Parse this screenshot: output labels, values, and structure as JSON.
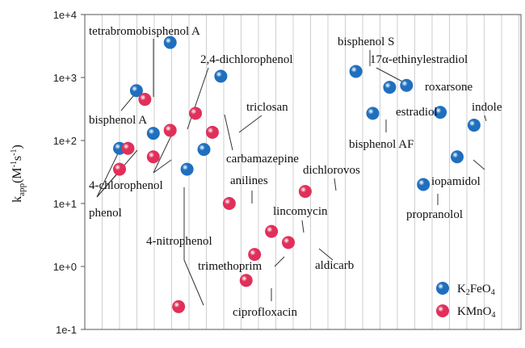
{
  "chart_data": {
    "type": "scatter",
    "y_scale": "log",
    "ylim": [
      0.1,
      10000
    ],
    "yticks": [
      0.1,
      1,
      10,
      100,
      1000,
      10000
    ],
    "ytick_labels": [
      "1e-1",
      "1e+0",
      "1e+1",
      "1e+2",
      "1e+3",
      "1e+4"
    ],
    "ylabel_main": "k",
    "ylabel_sub": "app",
    "ylabel_units": "(M",
    "ylabel_exp1": "-1",
    "ylabel_mid": "s",
    "ylabel_exp2": "-1",
    "ylabel_close": ")",
    "grid": "vertical",
    "legend_position": "bottom-right",
    "series": [
      {
        "name": "K₂FeO₄",
        "legend_main": "K",
        "legend_sub1": "2",
        "legend_mid": "FeO",
        "legend_sub2": "4",
        "color": "#1f6fbf",
        "points": [
          {
            "x": 1,
            "y": 75
          },
          {
            "x": 2,
            "y": 620
          },
          {
            "x": 3,
            "y": 130
          },
          {
            "x": 4,
            "y": 3600
          },
          {
            "x": 5,
            "y": 35
          },
          {
            "x": 6,
            "y": 72
          },
          {
            "x": 7,
            "y": 1050
          },
          {
            "x": 15,
            "y": 1250
          },
          {
            "x": 16,
            "y": 270
          },
          {
            "x": 17,
            "y": 700
          },
          {
            "x": 18,
            "y": 750
          },
          {
            "x": 19,
            "y": 20
          },
          {
            "x": 20,
            "y": 280
          },
          {
            "x": 21,
            "y": 55
          },
          {
            "x": 22,
            "y": 175
          }
        ]
      },
      {
        "name": "KMnO₄",
        "legend_main": "KMnO",
        "legend_sub1": "",
        "legend_mid": "",
        "legend_sub2": "4",
        "color": "#e0305a",
        "points": [
          {
            "x": 1,
            "y": 35
          },
          {
            "x": 1.5,
            "y": 75
          },
          {
            "x": 2.5,
            "y": 450
          },
          {
            "x": 3,
            "y": 55
          },
          {
            "x": 4,
            "y": 145
          },
          {
            "x": 4.5,
            "y": 0.23
          },
          {
            "x": 5.5,
            "y": 270
          },
          {
            "x": 6.5,
            "y": 135
          },
          {
            "x": 7.5,
            "y": 10
          },
          {
            "x": 8.5,
            "y": 0.6
          },
          {
            "x": 9,
            "y": 1.55
          },
          {
            "x": 10,
            "y": 3.6
          },
          {
            "x": 11,
            "y": 2.4
          },
          {
            "x": 12,
            "y": 15.5
          }
        ]
      }
    ],
    "annotations": [
      {
        "text": "tetrabromobisphenol A"
      },
      {
        "text": "2,4-dichlorophenol"
      },
      {
        "text": "bisphenol A"
      },
      {
        "text": "triclosan"
      },
      {
        "text": "carbamazepine"
      },
      {
        "text": "4-chlorophenol"
      },
      {
        "text": "phenol"
      },
      {
        "text": "anilines"
      },
      {
        "text": "dichlorovos"
      },
      {
        "text": "lincomycin"
      },
      {
        "text": "4-nitrophenol"
      },
      {
        "text": "trimethoprim"
      },
      {
        "text": "aldicarb"
      },
      {
        "text": "ciprofloxacin"
      },
      {
        "text": "bisphenol S"
      },
      {
        "text": "17α-ethinylestradiol"
      },
      {
        "text": "roxarsone"
      },
      {
        "text": "estradiol"
      },
      {
        "text": "indole"
      },
      {
        "text": "bisphenol AF"
      },
      {
        "text": "iopamidol"
      },
      {
        "text": "propranolol"
      }
    ]
  }
}
